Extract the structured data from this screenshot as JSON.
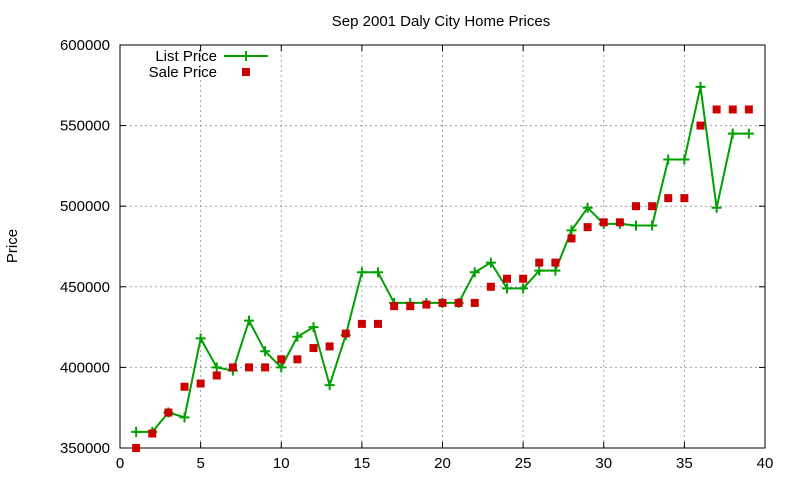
{
  "chart_data": {
    "type": "line",
    "title": "Sep 2001 Daly City Home Prices",
    "xlabel": "",
    "ylabel": "Price",
    "xlim": [
      0,
      40
    ],
    "ylim": [
      350000,
      600000
    ],
    "xticks": [
      0,
      5,
      10,
      15,
      20,
      25,
      30,
      35,
      40
    ],
    "yticks": [
      350000,
      400000,
      450000,
      500000,
      550000,
      600000
    ],
    "grid": true,
    "legend_position": "top-left",
    "series": [
      {
        "name": "List Price",
        "style": "line+cross",
        "color": "#00a000",
        "x": [
          1,
          2,
          3,
          4,
          5,
          6,
          7,
          8,
          9,
          10,
          11,
          12,
          13,
          14,
          15,
          16,
          17,
          18,
          19,
          20,
          21,
          22,
          23,
          24,
          25,
          26,
          27,
          28,
          29,
          30,
          31,
          32,
          33,
          34,
          35,
          36,
          37,
          38,
          39
        ],
        "values": [
          360000,
          360000,
          372000,
          369000,
          418000,
          400000,
          398000,
          429000,
          410000,
          400000,
          419000,
          425000,
          389000,
          420000,
          459000,
          459000,
          440000,
          440000,
          440000,
          440000,
          440000,
          459000,
          465000,
          449000,
          449000,
          460000,
          460000,
          485000,
          499000,
          489000,
          489000,
          488000,
          488000,
          529000,
          529000,
          574000,
          499000,
          545000,
          545000
        ]
      },
      {
        "name": "Sale Price",
        "style": "square-marker",
        "color": "#cc0000",
        "x": [
          1,
          2,
          3,
          4,
          5,
          6,
          7,
          8,
          9,
          10,
          11,
          12,
          13,
          14,
          15,
          16,
          17,
          18,
          19,
          20,
          21,
          22,
          23,
          24,
          25,
          26,
          27,
          28,
          29,
          30,
          31,
          32,
          33,
          34,
          35,
          36,
          37,
          38,
          39
        ],
        "values": [
          350000,
          359000,
          372000,
          388000,
          390000,
          395000,
          400000,
          400000,
          400000,
          405000,
          405000,
          412000,
          413000,
          421000,
          427000,
          427000,
          438000,
          438000,
          439000,
          440000,
          440000,
          440000,
          450000,
          455000,
          455000,
          465000,
          465000,
          480000,
          487000,
          490000,
          490000,
          500000,
          500000,
          505000,
          505000,
          550000,
          560000,
          560000,
          560000
        ]
      }
    ]
  }
}
